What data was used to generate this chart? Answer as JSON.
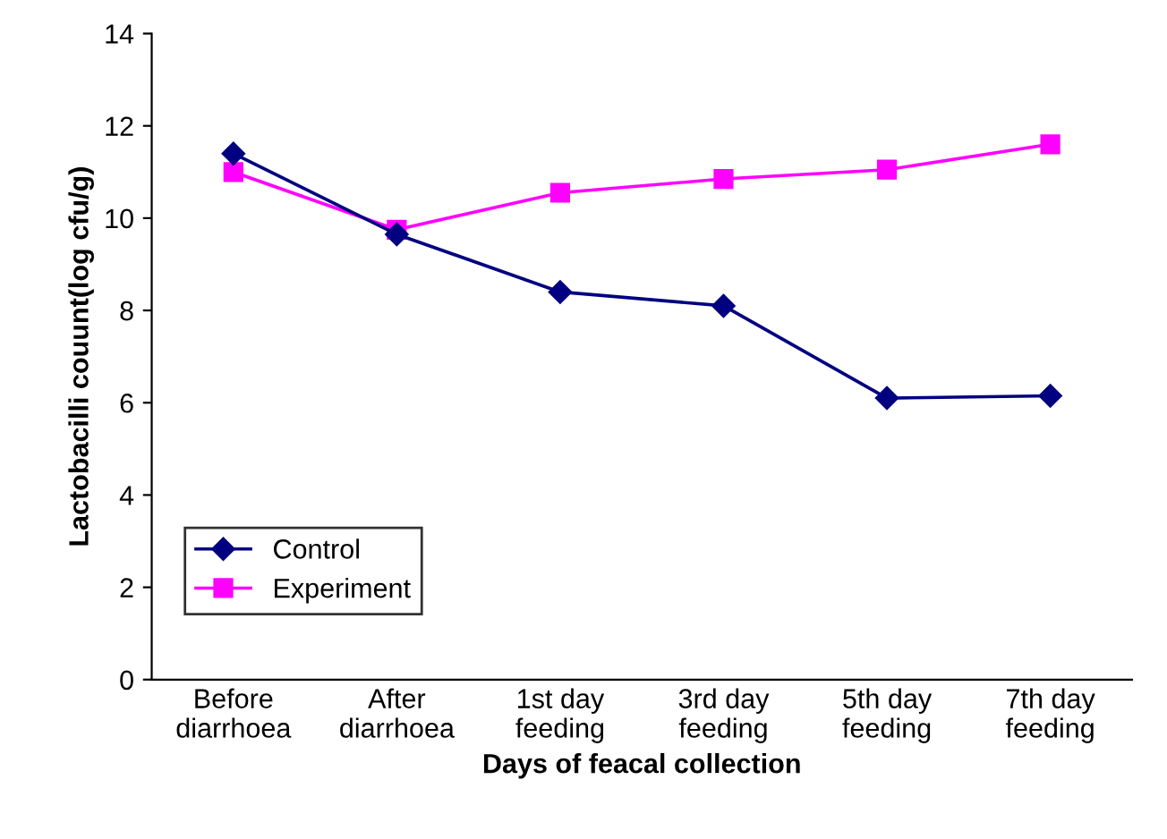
{
  "chart_data": {
    "type": "line",
    "xlabel": "Days of feacal collection",
    "ylabel": "Lactobacilli couunt(log cfu/g)",
    "categories": [
      "Before\ndiarrhoea",
      "After\ndiarrhoea",
      "1st day\nfeeding",
      "3rd day\nfeeding",
      "5th day\nfeeding",
      "7th day\nfeeding"
    ],
    "series": [
      {
        "name": "Control",
        "color": "#000080",
        "marker": "diamond",
        "values": [
          11.4,
          9.65,
          8.4,
          8.1,
          6.1,
          6.15
        ]
      },
      {
        "name": "Experiment",
        "color": "#ff00ff",
        "marker": "square",
        "values": [
          11.0,
          9.75,
          10.55,
          10.85,
          11.05,
          11.6
        ]
      }
    ],
    "ylim": [
      0,
      14
    ],
    "yticks": [
      0,
      2,
      4,
      6,
      8,
      10,
      12,
      14
    ],
    "grid": false,
    "legend": "bottom left",
    "line_style": "solid"
  }
}
